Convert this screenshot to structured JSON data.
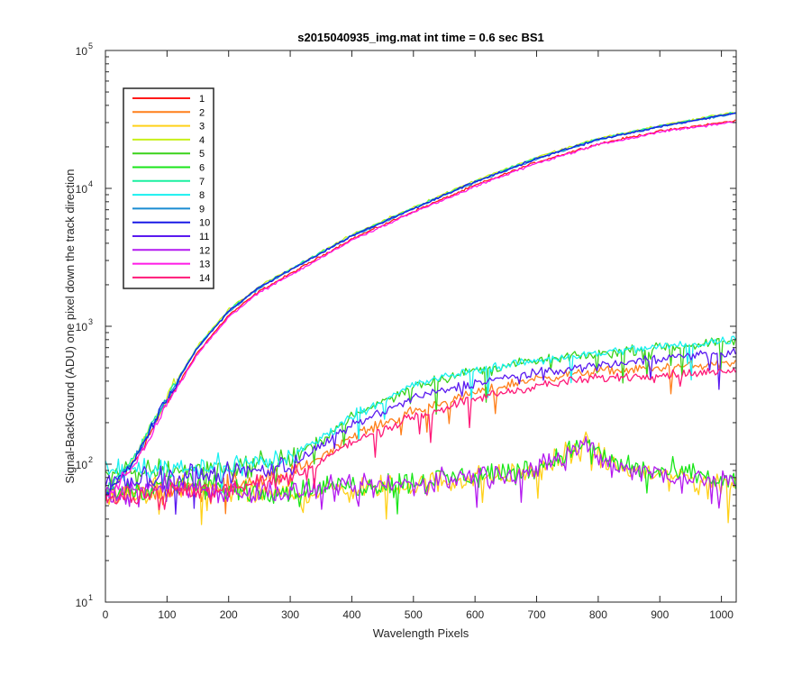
{
  "chart_data": {
    "type": "line",
    "title": "s2015040935_img.mat int time = 0.6 sec   BS1",
    "xlabel": "Wavelength Pixels",
    "ylabel": "Signal-BackGround (ADU) one pixel down the track direction",
    "xlim": [
      0,
      1024
    ],
    "ylim": [
      10,
      100000
    ],
    "yscale": "log",
    "grid": false,
    "legend_position": "top-left",
    "x_ticks": [
      0,
      100,
      200,
      300,
      400,
      500,
      600,
      700,
      800,
      900,
      1000
    ],
    "x_tick_labels": [
      "0",
      "100",
      "200",
      "300",
      "400",
      "500",
      "600",
      "700",
      "800",
      "900",
      "1000"
    ],
    "y_ticks": [
      10,
      100,
      1000,
      10000,
      100000
    ],
    "y_tick_labels": [
      {
        "base": "10",
        "exp": "1"
      },
      {
        "base": "10",
        "exp": "2"
      },
      {
        "base": "10",
        "exp": "3"
      },
      {
        "base": "10",
        "exp": "4"
      },
      {
        "base": "10",
        "exp": "5"
      }
    ],
    "series": [
      {
        "name": "1",
        "color": "#ff1a1a",
        "group": "high",
        "x": [
          0,
          50,
          100,
          150,
          200,
          250,
          300,
          400,
          500,
          600,
          700,
          800,
          900,
          1024
        ],
        "y": [
          55,
          110,
          280,
          650,
          1200,
          1800,
          2400,
          4300,
          6800,
          10500,
          15500,
          21000,
          26000,
          31000
        ]
      },
      {
        "name": "2",
        "color": "#ff7f1a",
        "group": "mid",
        "x": [
          0,
          100,
          200,
          300,
          350,
          400,
          500,
          600,
          700,
          800,
          900,
          1024
        ],
        "y": [
          60,
          65,
          72,
          82,
          115,
          160,
          240,
          330,
          420,
          470,
          500,
          540
        ]
      },
      {
        "name": "3",
        "color": "#ffd11a",
        "group": "low",
        "x": [
          0,
          100,
          200,
          300,
          400,
          500,
          600,
          700,
          780,
          800,
          850,
          900,
          1024
        ],
        "y": [
          55,
          68,
          62,
          60,
          66,
          70,
          80,
          88,
          140,
          110,
          90,
          85,
          70
        ]
      },
      {
        "name": "4",
        "color": "#c8f01a",
        "group": "high",
        "x": [
          0,
          50,
          100,
          150,
          200,
          250,
          300,
          400,
          500,
          600,
          700,
          800,
          900,
          1024
        ],
        "y": [
          60,
          120,
          310,
          720,
          1320,
          1950,
          2600,
          4600,
          7300,
          11400,
          16800,
          23000,
          28500,
          36000
        ]
      },
      {
        "name": "5",
        "color": "#3ad21a",
        "group": "mid",
        "x": [
          0,
          100,
          200,
          250,
          300,
          350,
          400,
          500,
          600,
          700,
          800,
          900,
          1024
        ],
        "y": [
          85,
          92,
          95,
          100,
          110,
          150,
          220,
          370,
          480,
          560,
          630,
          700,
          790
        ]
      },
      {
        "name": "6",
        "color": "#1ae61a",
        "group": "low",
        "x": [
          0,
          100,
          200,
          300,
          400,
          500,
          600,
          700,
          780,
          800,
          850,
          900,
          1024
        ],
        "y": [
          60,
          72,
          66,
          64,
          70,
          74,
          84,
          92,
          145,
          115,
          95,
          88,
          75
        ]
      },
      {
        "name": "7",
        "color": "#1af0a0",
        "group": "high",
        "x": [
          0,
          50,
          100,
          150,
          200,
          250,
          300,
          400,
          500,
          600,
          700,
          800,
          900,
          1024
        ],
        "y": [
          60,
          118,
          305,
          710,
          1300,
          1930,
          2580,
          4550,
          7200,
          11200,
          16600,
          22800,
          28300,
          35500
        ]
      },
      {
        "name": "8",
        "color": "#1af0f0",
        "group": "mid",
        "x": [
          0,
          100,
          200,
          250,
          300,
          350,
          400,
          500,
          600,
          700,
          800,
          900,
          1024
        ],
        "y": [
          90,
          95,
          98,
          103,
          112,
          155,
          225,
          375,
          485,
          565,
          640,
          710,
          800
        ]
      },
      {
        "name": "9",
        "color": "#1a8cd2",
        "group": "high",
        "x": [
          0,
          50,
          100,
          150,
          200,
          250,
          300,
          400,
          500,
          600,
          700,
          800,
          900,
          1024
        ],
        "y": [
          58,
          115,
          300,
          700,
          1280,
          1900,
          2550,
          4500,
          7100,
          11100,
          16400,
          22500,
          28000,
          35000
        ]
      },
      {
        "name": "10",
        "color": "#1a1ae6",
        "group": "high",
        "x": [
          0,
          50,
          100,
          150,
          200,
          250,
          300,
          400,
          500,
          600,
          700,
          800,
          900,
          1024
        ],
        "y": [
          58,
          114,
          302,
          705,
          1290,
          1920,
          2560,
          4520,
          7150,
          11150,
          16450,
          22600,
          28100,
          35200
        ]
      },
      {
        "name": "11",
        "color": "#5a1af0",
        "group": "mid",
        "x": [
          0,
          100,
          200,
          250,
          300,
          350,
          400,
          500,
          600,
          700,
          800,
          900,
          1024
        ],
        "y": [
          75,
          82,
          85,
          90,
          100,
          135,
          190,
          300,
          390,
          460,
          520,
          590,
          650
        ]
      },
      {
        "name": "12",
        "color": "#b41af0",
        "group": "low",
        "x": [
          0,
          100,
          200,
          300,
          400,
          500,
          600,
          700,
          780,
          800,
          850,
          900,
          1024
        ],
        "y": [
          58,
          70,
          64,
          62,
          68,
          72,
          82,
          90,
          142,
          112,
          92,
          86,
          72
        ]
      },
      {
        "name": "13",
        "color": "#ff1ae6",
        "group": "high",
        "x": [
          0,
          50,
          100,
          150,
          200,
          250,
          300,
          400,
          500,
          600,
          700,
          800,
          900,
          1024
        ],
        "y": [
          55,
          105,
          270,
          630,
          1170,
          1760,
          2350,
          4200,
          6700,
          10300,
          15200,
          20700,
          25700,
          30500
        ]
      },
      {
        "name": "14",
        "color": "#ff1a78",
        "group": "mid",
        "x": [
          0,
          100,
          200,
          300,
          350,
          400,
          500,
          600,
          700,
          800,
          900,
          1024
        ],
        "y": [
          58,
          62,
          68,
          78,
          105,
          145,
          220,
          300,
          370,
          420,
          445,
          470
        ]
      }
    ]
  }
}
